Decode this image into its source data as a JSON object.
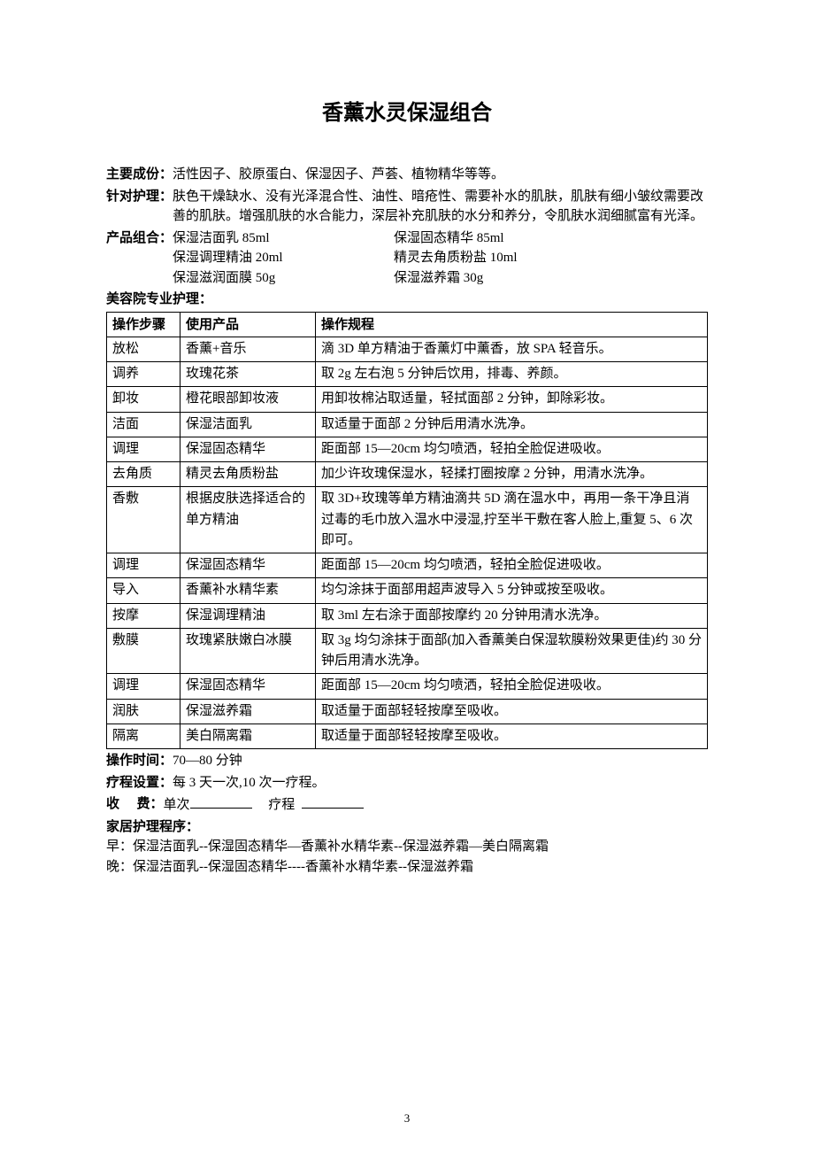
{
  "title": "香薰水灵保湿组合",
  "sections": {
    "ingredients_label": "主要成份：",
    "ingredients_body": "活性因子、胶原蛋白、保湿因子、芦荟、植物精华等等。",
    "target_label": "针对护理：",
    "target_body": "肤色干燥缺水、没有光泽混合性、油性、暗疮性、需要补水的肌肤，肌肤有细小皱纹需要改善的肌肤。增强肌肤的水合能力，深层补充肌肤的水分和养分，令肌肤水润细腻富有光泽。",
    "combo_label": "产品组合：",
    "combo_left": [
      "保湿洁面乳 85ml",
      "保湿调理精油 20ml",
      "保湿滋润面膜 50g"
    ],
    "combo_right": [
      "保湿固态精华 85ml",
      "精灵去角质粉盐 10ml",
      "保湿滋养霜 30g"
    ]
  },
  "salon_header": "美容院专业护理：",
  "table_headers": [
    "操作步骤",
    "使用产品",
    "操作规程"
  ],
  "steps": [
    {
      "step": "放松",
      "product": "香薰+音乐",
      "proc": "滴 3D 单方精油于香薰灯中薰香，放 SPA 轻音乐。"
    },
    {
      "step": "调养",
      "product": "玫瑰花茶",
      "proc": "取 2g 左右泡 5 分钟后饮用，排毒、养颜。"
    },
    {
      "step": "卸妆",
      "product": "橙花眼部卸妆液",
      "proc": "用卸妆棉沾取适量，轻拭面部 2 分钟，卸除彩妆。"
    },
    {
      "step": "洁面",
      "product": "保湿洁面乳",
      "proc": "取适量于面部 2 分钟后用清水洗净。"
    },
    {
      "step": "调理",
      "product": "保湿固态精华",
      "proc": "距面部 15—20cm 均匀喷洒，轻拍全脸促进吸收。"
    },
    {
      "step": "去角质",
      "product": "精灵去角质粉盐",
      "proc": "加少许玫瑰保湿水，轻揉打圈按摩 2 分钟，用清水洗净。"
    },
    {
      "step": "香敷",
      "product": "根据皮肤选择适合的单方精油",
      "proc": "取 3D+玫瑰等单方精油滴共 5D 滴在温水中，再用一条干净且消过毒的毛巾放入温水中浸湿,拧至半干敷在客人脸上,重复 5、6 次即可。"
    },
    {
      "step": "调理",
      "product": "保湿固态精华",
      "proc": "距面部 15—20cm 均匀喷洒，轻拍全脸促进吸收。"
    },
    {
      "step": "导入",
      "product": "香薰补水精华素",
      "proc": "均匀涂抹于面部用超声波导入 5 分钟或按至吸收。"
    },
    {
      "step": "按摩",
      "product": "保湿调理精油",
      "proc": "取 3ml 左右涂于面部按摩约 20 分钟用清水洗净。"
    },
    {
      "step": "敷膜",
      "product": "玫瑰紧肤嫩白冰膜",
      "proc": "取 3g 均匀涂抹于面部(加入香薰美白保湿软膜粉效果更佳)约 30 分钟后用清水洗净。"
    },
    {
      "step": "调理",
      "product": "保湿固态精华",
      "proc": "距面部 15—20cm 均匀喷洒，轻拍全脸促进吸收。"
    },
    {
      "step": "润肤",
      "product": "保湿滋养霜",
      "proc": "取适量于面部轻轻按摩至吸收。"
    },
    {
      "step": "隔离",
      "product": "美白隔离霜",
      "proc": "取适量于面部轻轻按摩至吸收。"
    }
  ],
  "duration_label": "操作时间：",
  "duration_value": "70—80 分钟",
  "course_label": "疗程设置：",
  "course_value": "每 3 天一次,10 次一疗程。",
  "fee_label": "收费：",
  "fee_single": "单次",
  "fee_course": "疗程",
  "home_header": "家居护理程序：",
  "home_morning": "早：保湿洁面乳--保湿固态精华—香薰补水精华素--保湿滋养霜—美白隔离霜",
  "home_evening": "晚：保湿洁面乳--保湿固态精华----香薰补水精华素--保湿滋养霜",
  "page_number": "3"
}
